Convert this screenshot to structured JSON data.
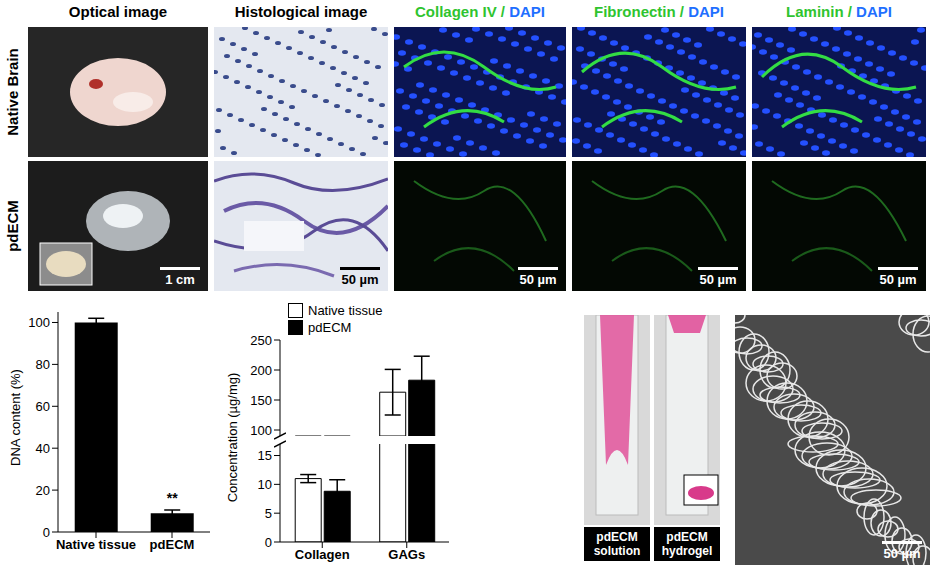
{
  "image_panels": {
    "columns": [
      {
        "parts": [
          {
            "text": "Optical image",
            "color": "#000000"
          }
        ]
      },
      {
        "parts": [
          {
            "text": "Histological image",
            "color": "#000000"
          }
        ]
      },
      {
        "parts": [
          {
            "text": "Collagen IV / ",
            "color": "#2fc42f"
          },
          {
            "text": "DAPI",
            "color": "#1f6fff"
          }
        ]
      },
      {
        "parts": [
          {
            "text": "Fibronectin / ",
            "color": "#2fc42f"
          },
          {
            "text": "DAPI",
            "color": "#1f6fff"
          }
        ]
      },
      {
        "parts": [
          {
            "text": "Laminin / ",
            "color": "#2fc42f"
          },
          {
            "text": "DAPI",
            "color": "#1f6fff"
          }
        ]
      }
    ],
    "rows": [
      "Native Brain",
      "pdECM"
    ],
    "scale_bars": [
      "1 cm",
      "50 µm",
      "50 µm",
      "50 µm",
      "50 µm"
    ]
  },
  "gel_images": {
    "labels": [
      "pdECM solution",
      "pdECM hydrogel"
    ]
  },
  "sem_image": {
    "scale_bar": "50 µm"
  },
  "chart_data": [
    {
      "type": "bar",
      "y_label": "DNA content (%)",
      "categories": [
        "Native tissue",
        "pdECM"
      ],
      "values": [
        100,
        9
      ],
      "errors": [
        2,
        1.5
      ],
      "annotations": [
        null,
        "**"
      ],
      "color": "#000000",
      "ylim": [
        0,
        105
      ],
      "yticks": [
        0,
        20,
        40,
        60,
        80,
        100
      ]
    },
    {
      "type": "bar",
      "y_label": "Concentration (µg/mg)",
      "categories": [
        "Collagen",
        "GAGs"
      ],
      "series": [
        {
          "name": "Native tissue",
          "color": "#ffffff",
          "values": [
            11,
            163
          ],
          "errors": [
            0.7,
            38
          ]
        },
        {
          "name": "pdECM",
          "color": "#000000",
          "values": [
            8.8,
            183
          ],
          "errors": [
            2,
            40
          ]
        }
      ],
      "ylim": [
        0,
        250
      ],
      "yticks": [
        0,
        5,
        10,
        15,
        100,
        150,
        200,
        250
      ],
      "axis_break": [
        17,
        90
      ],
      "legend": "upper left"
    }
  ]
}
